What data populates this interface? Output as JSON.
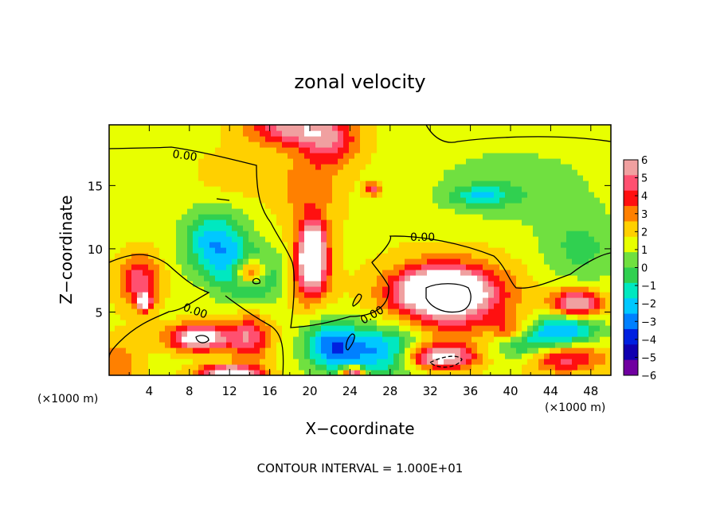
{
  "chart_data": {
    "type": "heatmap",
    "title": "zonal velocity",
    "xlabel": "X−coordinate",
    "ylabel": "Z−coordinate",
    "x_unit_label": "(×1000 m)",
    "z_unit_label": "(×1000 m)",
    "xlim": [
      0,
      50
    ],
    "ylim": [
      0,
      19.8
    ],
    "x_ticks": [
      4,
      8,
      12,
      16,
      20,
      24,
      28,
      32,
      36,
      40,
      44,
      48
    ],
    "x_tick_labels": [
      "4",
      "8",
      "12",
      "16",
      "20",
      "24",
      "28",
      "32",
      "36",
      "40",
      "44",
      "48"
    ],
    "y_ticks": [
      5,
      10,
      15
    ],
    "y_tick_labels": [
      "5",
      "10",
      "15"
    ],
    "colorbar": {
      "min": -6,
      "max": 6,
      "ticks": [
        6,
        5,
        4,
        3,
        2,
        1,
        0,
        -1,
        -2,
        -3,
        -4,
        -5,
        -6
      ],
      "tick_labels": [
        "6",
        "5",
        "4",
        "3",
        "2",
        "1",
        "0",
        "−1",
        "−2",
        "−3",
        "−4",
        "−5",
        "−6"
      ],
      "colors": [
        "#f0a0a0",
        "#ff5070",
        "#ff1010",
        "#ff8000",
        "#ffd000",
        "#e8ff00",
        "#70e040",
        "#30d050",
        "#00e8c0",
        "#00c8ff",
        "#0080ff",
        "#0020e0",
        "#1000b0",
        "#7000a0"
      ]
    },
    "contour_labels": [
      "0.00",
      "0.00",
      "0.00",
      "0.00"
    ],
    "footer": "CONTOUR INTERVAL = 1.000E+01",
    "features": [
      {
        "x": 18,
        "z": 19.5,
        "v": 4.5,
        "sx": 4,
        "sz": 1.3
      },
      {
        "x": 22,
        "z": 18.5,
        "v": 3.5,
        "sx": 3,
        "sz": 2
      },
      {
        "x": 13,
        "z": 16,
        "v": 1,
        "sx": 4,
        "sz": 2
      },
      {
        "x": 20,
        "z": 14.5,
        "v": 2,
        "sx": 3,
        "sz": 3
      },
      {
        "x": 26.3,
        "z": 14.8,
        "v": 4,
        "sx": 0.8,
        "sz": 0.5
      },
      {
        "x": 37,
        "z": 14.2,
        "v": -2.8,
        "sx": 3,
        "sz": 0.8
      },
      {
        "x": 40,
        "z": 15,
        "v": -1.5,
        "sx": 8,
        "sz": 3
      },
      {
        "x": 47,
        "z": 10,
        "v": -2,
        "sx": 4,
        "sz": 3
      },
      {
        "x": 10.5,
        "z": 10.5,
        "v": -4.5,
        "sx": 3,
        "sz": 2.5
      },
      {
        "x": 14,
        "z": 8,
        "v": -5,
        "sx": 3,
        "sz": 2
      },
      {
        "x": 14,
        "z": 8.2,
        "v": 7,
        "sx": 1.6,
        "sz": 1.2
      },
      {
        "x": 20.3,
        "z": 10,
        "v": 7,
        "sx": 1.3,
        "sz": 2.2
      },
      {
        "x": 20,
        "z": 8,
        "v": 4,
        "sx": 2,
        "sz": 2.5
      },
      {
        "x": 3,
        "z": 7.5,
        "v": 4,
        "sx": 2,
        "sz": 2
      },
      {
        "x": 3.5,
        "z": 5.8,
        "v": 7,
        "sx": 0.7,
        "sz": 0.6
      },
      {
        "x": 9,
        "z": 3,
        "v": 7,
        "sx": 3,
        "sz": 1
      },
      {
        "x": 14,
        "z": 3,
        "v": 4,
        "sx": 2,
        "sz": 1.8
      },
      {
        "x": 33,
        "z": 6.8,
        "v": 7,
        "sx": 4,
        "sz": 1.5
      },
      {
        "x": 34,
        "z": 6,
        "v": 5,
        "sx": 6,
        "sz": 3
      },
      {
        "x": 32.8,
        "z": 1.5,
        "v": 7,
        "sx": 3.5,
        "sz": 1
      },
      {
        "x": 27,
        "z": 2,
        "v": -5,
        "sx": 5,
        "sz": 2
      },
      {
        "x": 42,
        "z": 2.5,
        "v": -4.5,
        "sx": 4,
        "sz": 1.5
      },
      {
        "x": 46.5,
        "z": 5.5,
        "v": 7,
        "sx": 2.5,
        "sz": 1.3
      },
      {
        "x": 46,
        "z": 4,
        "v": -5,
        "sx": 3,
        "sz": 1.5
      },
      {
        "x": 45,
        "z": 1.5,
        "v": 5,
        "sx": 4,
        "sz": 1.2
      },
      {
        "x": 12,
        "z": 0.3,
        "v": 7,
        "sx": 3,
        "sz": 0.5
      },
      {
        "x": 24.3,
        "z": 0.3,
        "v": 7,
        "sx": 1,
        "sz": 0.4
      },
      {
        "x": 40,
        "z": 3.5,
        "v": 3,
        "sx": 2,
        "sz": 1
      },
      {
        "x": 1,
        "z": 1,
        "v": 2,
        "sx": 2,
        "sz": 2
      },
      {
        "x": 22,
        "z": 2.5,
        "v": -4,
        "sx": 2.5,
        "sz": 2
      }
    ]
  }
}
